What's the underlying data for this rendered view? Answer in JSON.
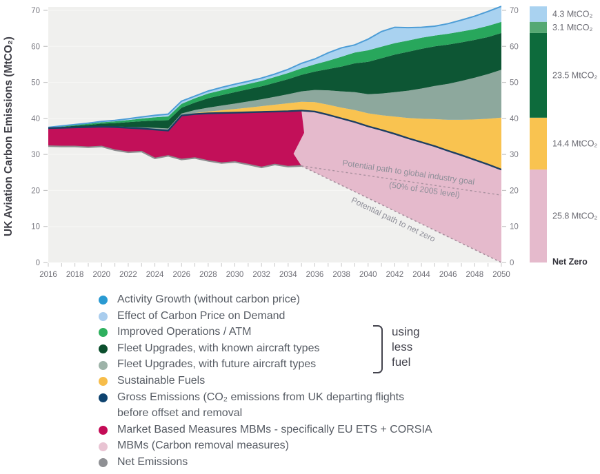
{
  "colors": {
    "plot_bg": "#f0f0ee",
    "grid": "#fafaf8",
    "activity_line": "#4d9dd6",
    "carbon_price": "#a9d2f0",
    "improved_ops": "#28a75c",
    "fleet_known": "#0d5634",
    "fleet_known_bar": "#0d6b3c",
    "improved_ops_bar": "#55a873",
    "fleet_future": "#8da89d",
    "saf": "#f9c350",
    "gross_line": "#1c3e63",
    "mbm": "#c21059",
    "removal": "#e5bacc",
    "net_line": "#8d8d8f",
    "dashed_line": "#a78f9d",
    "tick": "#c6c6c6",
    "tick_label": "#7b7b83",
    "year_label": "#6f6f77",
    "annotation": "#8f8f99",
    "bar_label": "#6a6a72",
    "net_zero_label": "#33333b"
  },
  "chart_data": {
    "type": "area",
    "y_axis_title": "UK Aviation Carbon Emissions (MtCO₂)",
    "y_ticks": [
      0,
      10,
      20,
      30,
      40,
      50,
      60,
      70
    ],
    "ylim": [
      0,
      70
    ],
    "x_years": [
      2016,
      2017,
      2018,
      2019,
      2020,
      2021,
      2022,
      2023,
      2024,
      2025,
      2026,
      2027,
      2028,
      2029,
      2030,
      2031,
      2032,
      2033,
      2034,
      2035,
      2036,
      2037,
      2038,
      2039,
      2040,
      2041,
      2042,
      2043,
      2044,
      2045,
      2046,
      2047,
      2048,
      2049,
      2050
    ],
    "x_labeled_every": 2,
    "series_stacked_above_gross": [
      {
        "key": "saf",
        "name": "Sustainable Fuels",
        "values": [
          0,
          0,
          0,
          0,
          0,
          0,
          0,
          0,
          0,
          0,
          0.05,
          0.3,
          0.5,
          0.75,
          1.0,
          1.3,
          1.6,
          1.9,
          2.2,
          2.4,
          2.6,
          2.8,
          3.0,
          3.3,
          3.6,
          4.1,
          4.8,
          5.6,
          6.5,
          7.5,
          8.6,
          9.8,
          11.2,
          12.7,
          14.4
        ]
      },
      {
        "key": "fleet_future",
        "name": "Fleet Upgrades, with future aircraft types",
        "values": [
          0,
          0,
          0.05,
          0.07,
          0.1,
          0.15,
          0.25,
          0.35,
          0.5,
          0.6,
          0.5,
          0.8,
          1.1,
          1.3,
          1.5,
          1.7,
          1.9,
          2.2,
          2.5,
          2.9,
          3.4,
          4.0,
          4.5,
          5.0,
          5.3,
          6.0,
          6.8,
          7.6,
          8.4,
          9.2,
          10.0,
          10.8,
          11.6,
          12.4,
          13.3
        ]
      },
      {
        "key": "fleet_known",
        "name": "Fleet Upgrades, with known aircraft types",
        "values": [
          0.08,
          0.25,
          0.4,
          0.55,
          0.75,
          0.95,
          1.3,
          1.65,
          2.0,
          2.3,
          1.6,
          2.1,
          2.6,
          2.9,
          3.2,
          3.4,
          3.6,
          3.9,
          4.2,
          4.6,
          5.1,
          5.9,
          6.9,
          8.0,
          9.0,
          9.8,
          10.4,
          10.8,
          11.0,
          11.0,
          10.9,
          10.7,
          10.5,
          10.3,
          10.2
        ]
      },
      {
        "key": "improved_ops",
        "name": "Improved Operations / ATM",
        "values": [
          0.07,
          0.15,
          0.22,
          0.3,
          0.38,
          0.48,
          0.6,
          0.75,
          0.9,
          1.05,
          1.1,
          1.2,
          1.3,
          1.35,
          1.4,
          1.45,
          1.5,
          1.6,
          1.7,
          1.8,
          2.0,
          2.3,
          2.7,
          3.0,
          3.2,
          3.2,
          3.2,
          3.1,
          3.1,
          3.0,
          3.0,
          3.0,
          3.0,
          3.1,
          3.1
        ]
      },
      {
        "key": "carbon_price",
        "name": "Effect of Carbon Price on Demand",
        "values": [
          0.05,
          0.1,
          0.13,
          0.18,
          0.22,
          0.27,
          0.35,
          0.45,
          0.55,
          0.65,
          0.75,
          0.6,
          0.7,
          0.8,
          0.8,
          0.75,
          0.8,
          0.8,
          1.0,
          1.4,
          1.5,
          2.2,
          2.5,
          2.1,
          3.1,
          4.2,
          4.4,
          3.6,
          2.9,
          2.6,
          2.8,
          3.2,
          3.6,
          4.0,
          4.3
        ]
      }
    ],
    "gross_emissions": {
      "name": "Gross Emissions",
      "values": [
        37.3,
        37.4,
        37.5,
        37.6,
        37.7,
        37.6,
        37.4,
        37.2,
        36.9,
        36.6,
        40.8,
        41.2,
        41.4,
        41.5,
        41.6,
        41.7,
        41.8,
        41.9,
        42.0,
        42.2,
        41.9,
        41.0,
        40.0,
        39.0,
        37.8,
        36.8,
        35.7,
        34.5,
        33.4,
        32.3,
        31.0,
        29.8,
        28.5,
        27.2,
        25.8
      ]
    },
    "net_emissions": {
      "name": "Net Emissions",
      "years": [
        2016,
        2017,
        2018,
        2019,
        2020,
        2021,
        2022,
        2023,
        2024,
        2025,
        2026,
        2027,
        2028,
        2029,
        2030,
        2031,
        2032,
        2033,
        2034,
        2035
      ],
      "values": [
        32.3,
        32.2,
        32.2,
        32.0,
        32.2,
        31.2,
        30.6,
        30.8,
        28.9,
        29.6,
        28.6,
        29.0,
        28.2,
        27.6,
        27.9,
        27.2,
        26.4,
        27.2,
        26.6,
        26.8
      ]
    },
    "net_zero_path": {
      "start_year": 2035,
      "end_year": 2050,
      "start_value": 26.8,
      "end_value": 0
    },
    "industry_goal_path": {
      "start_year": 2035,
      "end_year": 2050,
      "start_value": 26.8,
      "end_value": 18.7
    },
    "annotations": [
      {
        "name": "industry-goal",
        "lines": [
          "Potential path to global industry goal",
          "(50% of 2005 level)"
        ]
      },
      {
        "name": "net-zero",
        "lines": [
          "Potential path to net zero"
        ]
      }
    ],
    "right_bar": {
      "segments": [
        {
          "from": 0,
          "to": 25.8,
          "color_key": "removal",
          "label": "25.8 MtCO₂"
        },
        {
          "from": 25.8,
          "to": 40.2,
          "color_key": "saf",
          "label": "14.4 MtCO₂"
        },
        {
          "from": 40.2,
          "to": 63.7,
          "color_key": "fleet_known_bar",
          "label": "23.5 MtCO₂"
        },
        {
          "from": 63.7,
          "to": 66.8,
          "color_key": "improved_ops_bar",
          "label": "3.1 MtCO₂"
        },
        {
          "from": 66.8,
          "to": 71.1,
          "color_key": "carbon_price",
          "label": "4.3 MtCO₂"
        }
      ],
      "footer_label": "Net Zero"
    }
  },
  "legend": {
    "items": [
      {
        "dot": "#2a9ad2",
        "label": "Activity Growth (without carbon price)"
      },
      {
        "dot": "#a9cdee",
        "label": "Effect of Carbon Price on Demand"
      },
      {
        "dot": "#2eb05e",
        "label": "Improved Operations / ATM"
      },
      {
        "dot": "#0b4f2d",
        "label": "Fleet Upgrades, with known aircraft types"
      },
      {
        "dot": "#9db3a8",
        "label": "Fleet Upgrades, with future aircraft types"
      },
      {
        "dot": "#f7bd4a",
        "label": "Sustainable Fuels"
      },
      {
        "dot": "#0e436f",
        "label": "Gross Emissions (CO₂ emissions from UK departing flights",
        "label2": "before offset and removal"
      },
      {
        "dot": "#c40b56",
        "label": "Market Based Measures MBMs - specifically EU ETS + CORSIA"
      },
      {
        "dot": "#e9c4d3",
        "label": "MBMs (Carbon removal measures)"
      },
      {
        "dot": "#8f9094",
        "label": "Net Emissions"
      }
    ],
    "bracket_lines": [
      "using",
      "less",
      "fuel"
    ]
  }
}
